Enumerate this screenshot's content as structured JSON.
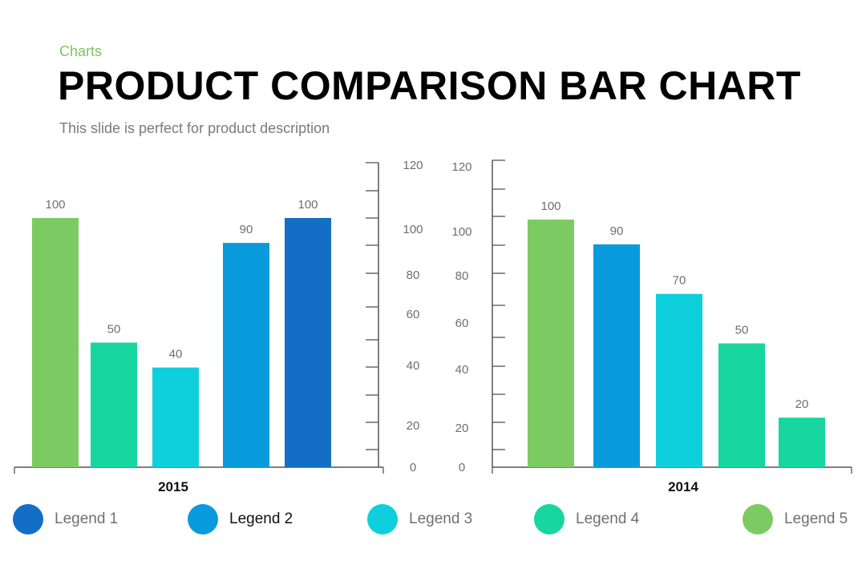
{
  "header": {
    "kicker": "Charts",
    "title": "PRODUCT COMPARISON BAR CHART",
    "subtitle": "This slide is perfect for product description"
  },
  "colors": {
    "legend1": "#136fc6",
    "legend2": "#0a9bdc",
    "legend3": "#0fcfdc",
    "legend4": "#17d6a0",
    "legend5": "#7ccb62",
    "axis": "#555555",
    "label": "#6e6e6e"
  },
  "legend": [
    {
      "label": "Legend 1",
      "color": "#136fc6"
    },
    {
      "label": "Legend 2",
      "color": "#0a9bdc"
    },
    {
      "label": "Legend 3",
      "color": "#0fcfdc"
    },
    {
      "label": "Legend 4",
      "color": "#17d6a0"
    },
    {
      "label": "Legend 5",
      "color": "#7ccb62"
    }
  ],
  "chart_data": [
    {
      "type": "bar",
      "title": "",
      "xlabel": "2015",
      "ylabel": "",
      "ylim": [
        0,
        120
      ],
      "y_axis_side": "right",
      "tick_labels": [
        "120",
        "100",
        "80",
        "60",
        "40",
        "20",
        "0"
      ],
      "bars": [
        {
          "value": 100,
          "label": "100",
          "color": "#7ccb62"
        },
        {
          "value": 50,
          "label": "50",
          "color": "#17d6a0"
        },
        {
          "value": 40,
          "label": "40",
          "color": "#0fcfdc"
        },
        {
          "value": 90,
          "label": "90",
          "color": "#0a9bdc"
        },
        {
          "value": 100,
          "label": "100",
          "color": "#136fc6"
        }
      ]
    },
    {
      "type": "bar",
      "title": "",
      "xlabel": "2014",
      "ylabel": "",
      "ylim": [
        0,
        120
      ],
      "y_axis_side": "left",
      "tick_labels": [
        "120",
        "100",
        "80",
        "60",
        "40",
        "20",
        "0"
      ],
      "bars": [
        {
          "value": 100,
          "label": "100",
          "color": "#7ccb62"
        },
        {
          "value": 90,
          "label": "90",
          "color": "#0a9bdc"
        },
        {
          "value": 70,
          "label": "70",
          "color": "#0fcfdc"
        },
        {
          "value": 50,
          "label": "50",
          "color": "#17d6a0"
        },
        {
          "value": 20,
          "label": "20",
          "color": "#17d6a0"
        }
      ]
    }
  ]
}
